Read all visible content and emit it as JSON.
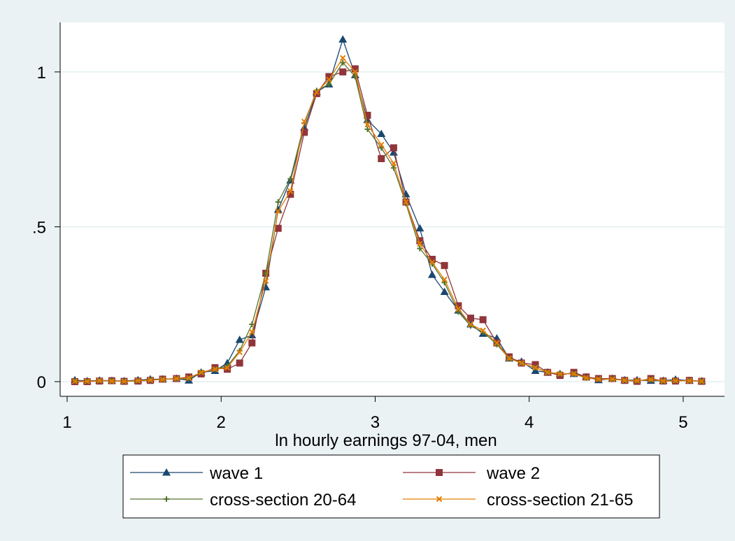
{
  "chart_data": {
    "type": "line",
    "title": "",
    "xlabel": "ln hourly earnings 97-04, men",
    "ylabel": "",
    "xlim": [
      1.0,
      5.2
    ],
    "ylim": [
      0.0,
      1.16
    ],
    "xticks": [
      1,
      2,
      3,
      4,
      5
    ],
    "xtick_labels": [
      "1",
      "2",
      "3",
      "4",
      "5"
    ],
    "yticks": [
      0,
      0.5,
      1
    ],
    "ytick_labels": [
      "0",
      ".5",
      "1"
    ],
    "grid": "horizontal",
    "legend_position": "bottom",
    "x": [
      1.05,
      1.13,
      1.21,
      1.29,
      1.37,
      1.46,
      1.54,
      1.62,
      1.71,
      1.79,
      1.87,
      1.96,
      2.04,
      2.12,
      2.2,
      2.29,
      2.37,
      2.45,
      2.54,
      2.62,
      2.7,
      2.79,
      2.87,
      2.95,
      3.04,
      3.12,
      3.2,
      3.29,
      3.37,
      3.45,
      3.54,
      3.62,
      3.7,
      3.79,
      3.87,
      3.95,
      4.04,
      4.12,
      4.2,
      4.29,
      4.37,
      4.45,
      4.54,
      4.62,
      4.7,
      4.79,
      4.87,
      4.95,
      5.04,
      5.12
    ],
    "series": [
      {
        "name": "wave 1",
        "color": "#1a476f",
        "marker": "triangle",
        "values": [
          0.005,
          0.002,
          0.004,
          0.003,
          0.002,
          0.005,
          0.008,
          0.008,
          0.01,
          0.004,
          0.03,
          0.035,
          0.06,
          0.135,
          0.15,
          0.305,
          0.555,
          0.65,
          0.82,
          0.935,
          0.96,
          1.105,
          0.99,
          0.845,
          0.8,
          0.74,
          0.605,
          0.495,
          0.345,
          0.29,
          0.23,
          0.185,
          0.155,
          0.14,
          0.075,
          0.065,
          0.035,
          0.03,
          0.025,
          0.025,
          0.015,
          0.005,
          0.01,
          0.005,
          0.005,
          0.003,
          0.003,
          0.007,
          0.003,
          0.002
        ]
      },
      {
        "name": "wave 2",
        "color": "#90353b",
        "marker": "square",
        "values": [
          0.0,
          0.0,
          0.002,
          0.003,
          0.001,
          0.002,
          0.004,
          0.008,
          0.01,
          0.015,
          0.025,
          0.045,
          0.04,
          0.06,
          0.125,
          0.35,
          0.495,
          0.605,
          0.805,
          0.93,
          0.985,
          1.0,
          1.01,
          0.86,
          0.72,
          0.755,
          0.58,
          0.455,
          0.395,
          0.375,
          0.245,
          0.205,
          0.2,
          0.125,
          0.08,
          0.06,
          0.055,
          0.03,
          0.02,
          0.03,
          0.015,
          0.01,
          0.01,
          0.004,
          0.001,
          0.01,
          0.002,
          0.002,
          0.004,
          0.001
        ]
      },
      {
        "name": "cross-section 20-64",
        "color": "#55752f",
        "marker": "plus",
        "values": [
          0.002,
          0.001,
          0.003,
          0.002,
          0.001,
          0.003,
          0.006,
          0.007,
          0.009,
          0.01,
          0.03,
          0.04,
          0.05,
          0.1,
          0.185,
          0.35,
          0.58,
          0.655,
          0.835,
          0.94,
          0.96,
          1.03,
          0.985,
          0.815,
          0.755,
          0.69,
          0.575,
          0.43,
          0.38,
          0.32,
          0.225,
          0.18,
          0.16,
          0.12,
          0.075,
          0.06,
          0.045,
          0.03,
          0.025,
          0.025,
          0.012,
          0.008,
          0.008,
          0.004,
          0.003,
          0.006,
          0.002,
          0.003,
          0.003,
          0.001
        ]
      },
      {
        "name": "cross-section 21-65",
        "color": "#e37e00",
        "marker": "x",
        "values": [
          0.001,
          0.001,
          0.003,
          0.002,
          0.001,
          0.003,
          0.005,
          0.007,
          0.01,
          0.012,
          0.03,
          0.04,
          0.045,
          0.095,
          0.16,
          0.325,
          0.55,
          0.615,
          0.84,
          0.935,
          0.975,
          1.045,
          1.0,
          0.83,
          0.765,
          0.705,
          0.58,
          0.445,
          0.385,
          0.33,
          0.235,
          0.185,
          0.165,
          0.125,
          0.075,
          0.06,
          0.045,
          0.03,
          0.025,
          0.025,
          0.012,
          0.008,
          0.008,
          0.004,
          0.003,
          0.007,
          0.002,
          0.003,
          0.003,
          0.001
        ]
      }
    ]
  }
}
